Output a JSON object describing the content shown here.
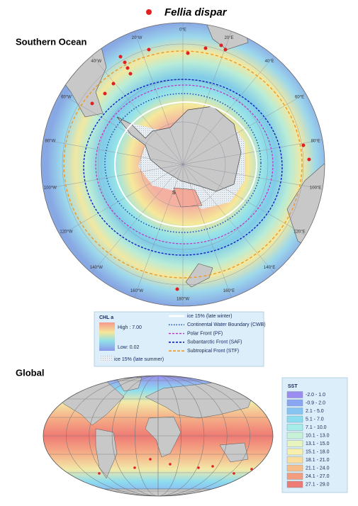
{
  "header": {
    "species": "Fellia dispar"
  },
  "southern_ocean": {
    "title": "Southern Ocean",
    "longitude_labels": [
      "0°E",
      "20°E",
      "40°E",
      "60°E",
      "80°E",
      "100°E",
      "120°E",
      "140°E",
      "160°E",
      "180°W",
      "160°W",
      "140°W",
      "120°W",
      "100°W",
      "80°W",
      "60°W",
      "40°W",
      "20°W"
    ],
    "marker": "S",
    "legend": {
      "title": "CHL a",
      "high": "High : 7.00",
      "low": "Low: 0.02",
      "ice_summer": "ice 15% (late summer)",
      "items": [
        "ice 15% (late winter)",
        "Continental Water Boundary (CWB)",
        "Polar Front (PF)",
        "Subantarctic Front (SAF)",
        "Subtropical Front (STF)"
      ]
    }
  },
  "global": {
    "title": "Global",
    "legend": {
      "title": "SST",
      "items": [
        {
          "label": "-2.0 - 1.0",
          "color": "#9a8cf0"
        },
        {
          "label": "-0.9 - 2.0",
          "color": "#8aa6f2"
        },
        {
          "label": "2.1 - 5.0",
          "color": "#86c4f4"
        },
        {
          "label": "5.1 - 7.0",
          "color": "#8cdcf0"
        },
        {
          "label": "7.1 - 10.0",
          "color": "#a6ece8"
        },
        {
          "label": "10.1 - 13.0",
          "color": "#c8f2d8"
        },
        {
          "label": "13.1 - 15.0",
          "color": "#e8f4c0"
        },
        {
          "label": "15.1 - 18.0",
          "color": "#f8eeae"
        },
        {
          "label": "18.1 - 21.0",
          "color": "#fadc9c"
        },
        {
          "label": "21.1 - 24.0",
          "color": "#f8be8a"
        },
        {
          "label": "24.1 - 27.0",
          "color": "#f49c7e"
        },
        {
          "label": "27.1 - 29.0",
          "color": "#ee7a74"
        }
      ]
    }
  }
}
